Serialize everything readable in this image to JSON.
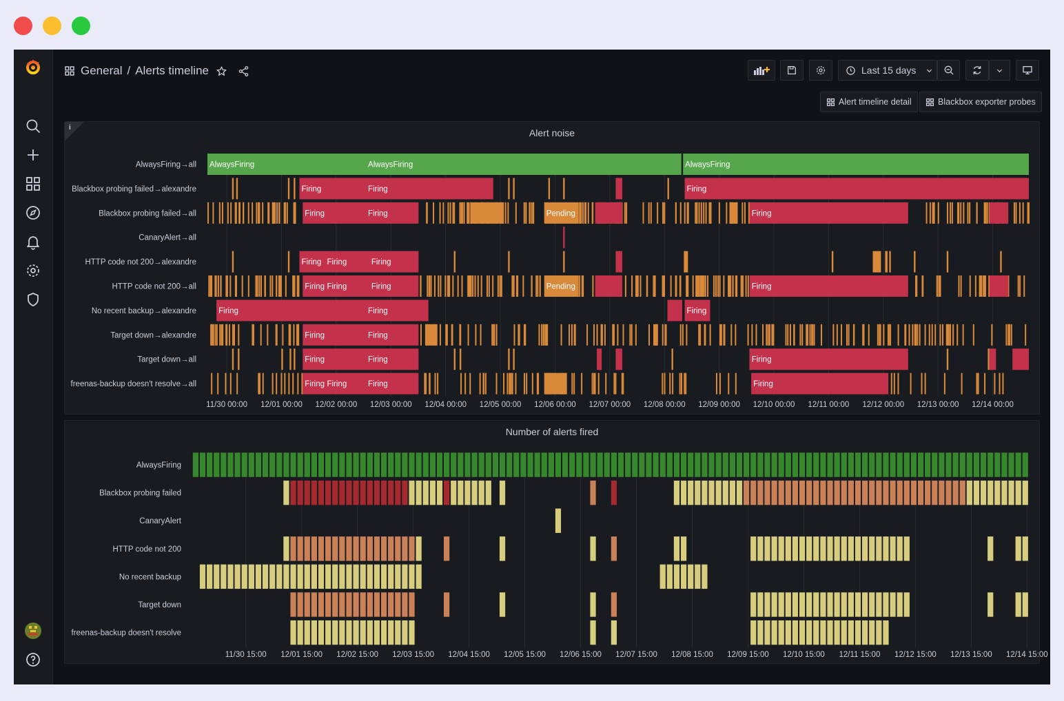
{
  "window": {
    "dots": [
      "#f14c4c",
      "#fbbe2e",
      "#29c940"
    ]
  },
  "header": {
    "breadcrumb_folder": "General",
    "breadcrumb_sep": "/",
    "dashboard_title": "Alerts timeline",
    "time_range": "Last 15 days"
  },
  "links": [
    {
      "label": "Alert timeline detail"
    },
    {
      "label": "Blackbox exporter probes"
    }
  ],
  "colors": {
    "green": "#56a64b",
    "red": "#c4314b",
    "orange": "#d8893a",
    "yellow": "#d6cd7f",
    "salmon": "#cb8158",
    "darkgreen": "#37872d",
    "darkred": "#a52a30"
  },
  "state_timeline": {
    "title": "Alert noise",
    "info_glyph": "i",
    "rows": [
      "AlwaysFiring→all",
      "Blackbox probing failed→alexandre",
      "Blackbox probing failed→all",
      "CanaryAlert→all",
      "HTTP code not 200→alexandre",
      "HTTP code not 200→all",
      "No recent backup→alexandre",
      "Target down→alexandre",
      "Target down→all",
      "freenas-backup doesn't resolve→all"
    ],
    "x_ticks": [
      "11/30 00:00",
      "12/01 00:00",
      "12/02 00:00",
      "12/03 00:00",
      "12/04 00:00",
      "12/05 00:00",
      "12/06 00:00",
      "12/07 00:00",
      "12/08 00:00",
      "12/09 00:00",
      "12/10 00:00",
      "12/11 00:00",
      "12/12 00:00",
      "12/13 00:00",
      "12/14 00:00"
    ],
    "state_labels": {
      "always": "AlwaysFiring",
      "firing": "Firing",
      "pending": "Pending"
    }
  },
  "status_history": {
    "title": "Number of alerts fired",
    "rows": [
      "AlwaysFiring",
      "Blackbox probing failed",
      "CanaryAlert",
      "HTTP code not 200",
      "No recent backup",
      "Target down",
      "freenas-backup doesn't resolve"
    ],
    "x_ticks": [
      "11/30 15:00",
      "12/01 15:00",
      "12/02 15:00",
      "12/03 15:00",
      "12/04 15:00",
      "12/05 15:00",
      "12/06 15:00",
      "12/07 15:00",
      "12/08 15:00",
      "12/09 15:00",
      "12/10 15:00",
      "12/11 15:00",
      "12/12 15:00",
      "12/13 15:00",
      "12/14 15:00"
    ]
  }
}
